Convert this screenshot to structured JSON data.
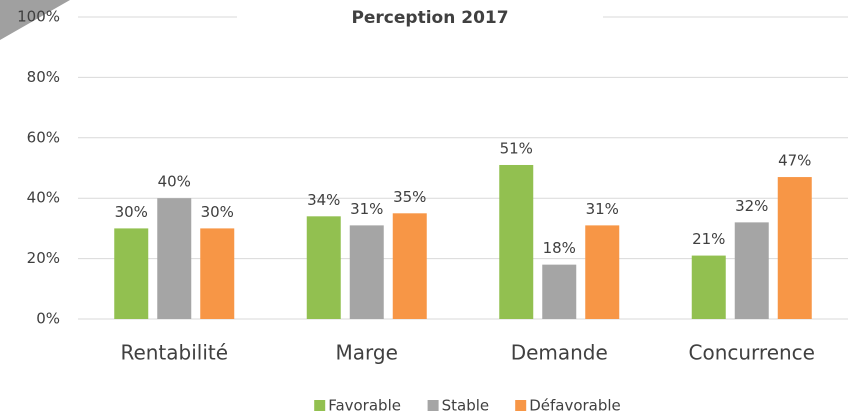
{
  "chart_data": {
    "type": "bar",
    "title": "Perception 2017",
    "categories": [
      "Rentabilité",
      "Marge",
      "Demande",
      "Concurrence"
    ],
    "series": [
      {
        "name": "Favorable",
        "color": "#92c050",
        "values": [
          30,
          34,
          51,
          21
        ],
        "value_labels": [
          "30%",
          "34%",
          "51%",
          "21%"
        ]
      },
      {
        "name": "Stable",
        "color": "#a5a5a5",
        "values": [
          40,
          31,
          18,
          32
        ],
        "value_labels": [
          "40%",
          "31%",
          "18%",
          "32%"
        ]
      },
      {
        "name": "Défavorable",
        "color": "#f79646",
        "values": [
          30,
          35,
          31,
          47
        ],
        "value_labels": [
          "30%",
          "35%",
          "31%",
          "47%"
        ]
      }
    ],
    "ylim": [
      0,
      100
    ],
    "yticks": [
      {
        "value": 0,
        "label": "0%"
      },
      {
        "value": 20,
        "label": "20%"
      },
      {
        "value": 40,
        "label": "40%"
      },
      {
        "value": 60,
        "label": "60%"
      },
      {
        "value": 80,
        "label": "80%"
      },
      {
        "value": 100,
        "label": "100%"
      }
    ],
    "grid": true,
    "legend": "bottom"
  }
}
